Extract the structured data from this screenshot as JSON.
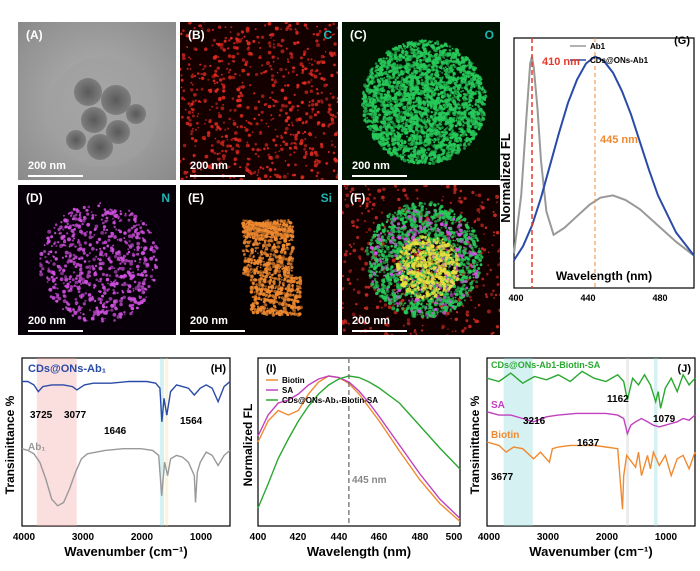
{
  "micro": {
    "A": {
      "label": "(A)",
      "element": "",
      "scale": "200 nm"
    },
    "B": {
      "label": "(B)",
      "element": "C",
      "scale": "200 nm"
    },
    "C": {
      "label": "(C)",
      "element": "O",
      "scale": "200 nm"
    },
    "D": {
      "label": "(D)",
      "element": "N",
      "scale": "200 nm"
    },
    "E": {
      "label": "(E)",
      "element": "Si",
      "scale": "200 nm"
    },
    "F": {
      "label": "(F)",
      "element": "",
      "scale": "200 nm"
    }
  },
  "colors": {
    "red": "#e53a2a",
    "green": "#2ecc6a",
    "magenta": "#d85ae0",
    "orange": "#f08a30",
    "cyan": "#1fb5b0",
    "blue": "#2a4aa8",
    "gray": "#999999"
  },
  "chart_data": [
    {
      "id": "G",
      "label": "(G)",
      "type": "line",
      "xlabel": "Wavelength (nm)",
      "ylabel": "Normalized FL",
      "xlim": [
        400,
        500
      ],
      "xticks": [
        "400",
        "440",
        "480"
      ],
      "series": [
        {
          "name": "Ab1",
          "color": "#999999",
          "x": [
            400,
            404,
            407,
            409,
            410,
            411,
            413,
            415,
            418,
            422,
            428,
            435,
            442,
            448,
            455,
            462,
            470,
            480,
            490,
            500
          ],
          "y": [
            0.15,
            0.4,
            0.75,
            0.97,
            1.0,
            0.95,
            0.78,
            0.55,
            0.33,
            0.23,
            0.26,
            0.31,
            0.36,
            0.39,
            0.4,
            0.38,
            0.34,
            0.27,
            0.2,
            0.14
          ]
        },
        {
          "name": "CDs@ONs-Ab1",
          "color": "#2a4aa8",
          "x": [
            400,
            405,
            410,
            415,
            420,
            425,
            430,
            435,
            440,
            445,
            450,
            455,
            460,
            465,
            470,
            475,
            480,
            490,
            500
          ],
          "y": [
            0.12,
            0.18,
            0.27,
            0.39,
            0.53,
            0.67,
            0.8,
            0.9,
            0.97,
            1.0,
            0.98,
            0.93,
            0.85,
            0.75,
            0.63,
            0.51,
            0.4,
            0.24,
            0.14
          ]
        }
      ],
      "annotations": [
        {
          "text": "410 nm",
          "x": 410,
          "color": "#e53a2a"
        },
        {
          "text": "445 nm",
          "x": 445,
          "color": "#f08a30"
        }
      ]
    },
    {
      "id": "H",
      "label": "(H)",
      "type": "line",
      "xlabel": "Wavenumber (cm⁻¹)",
      "ylabel": "Transimittance %",
      "xlim": [
        4000,
        500
      ],
      "xticks": [
        "4000",
        "3000",
        "2000",
        "1000"
      ],
      "series": [
        {
          "name": "CDs@ONs-Ab₁",
          "color": "#2a4aa8",
          "x": [
            4000,
            3900,
            3800,
            3725,
            3650,
            3500,
            3300,
            3150,
            3077,
            2950,
            2800,
            2500,
            2200,
            1900,
            1750,
            1680,
            1646,
            1610,
            1564,
            1500,
            1400,
            1300,
            1200,
            1100,
            1050,
            1000,
            900,
            800,
            700,
            600,
            500
          ],
          "y": [
            0.86,
            0.86,
            0.84,
            0.8,
            0.83,
            0.84,
            0.84,
            0.83,
            0.81,
            0.84,
            0.85,
            0.85,
            0.86,
            0.86,
            0.85,
            0.82,
            0.62,
            0.76,
            0.66,
            0.8,
            0.84,
            0.83,
            0.82,
            0.78,
            0.8,
            0.82,
            0.84,
            0.82,
            0.74,
            0.83,
            0.86
          ]
        },
        {
          "name": "Ab₁",
          "color": "#999999",
          "x": [
            4000,
            3900,
            3800,
            3700,
            3600,
            3500,
            3400,
            3300,
            3200,
            3100,
            3000,
            2900,
            2600,
            2300,
            2000,
            1800,
            1700,
            1650,
            1600,
            1550,
            1500,
            1400,
            1300,
            1200,
            1100,
            1080,
            1050,
            1000,
            900,
            800,
            700,
            600,
            500
          ],
          "y": [
            0.46,
            0.45,
            0.43,
            0.38,
            0.28,
            0.16,
            0.12,
            0.14,
            0.22,
            0.32,
            0.4,
            0.43,
            0.45,
            0.46,
            0.46,
            0.45,
            0.42,
            0.18,
            0.38,
            0.3,
            0.4,
            0.42,
            0.41,
            0.38,
            0.3,
            0.14,
            0.32,
            0.38,
            0.44,
            0.42,
            0.36,
            0.42,
            0.45
          ]
        }
      ],
      "annotations": [
        {
          "text": "3725",
          "x": 3725
        },
        {
          "text": "3077",
          "x": 3077
        },
        {
          "text": "1646",
          "x": 1646
        },
        {
          "text": "1564",
          "x": 1564
        }
      ]
    },
    {
      "id": "I",
      "label": "(I)",
      "type": "line",
      "xlabel": "Wavelength (nm)",
      "ylabel": "Normalized FL",
      "xlim": [
        400,
        500
      ],
      "xticks": [
        "400",
        "420",
        "440",
        "460",
        "480",
        "500"
      ],
      "series": [
        {
          "name": "Biotin",
          "color": "#f08a30",
          "x": [
            400,
            405,
            410,
            415,
            420,
            425,
            430,
            435,
            440,
            445,
            450,
            455,
            460,
            470,
            480,
            490,
            500
          ],
          "y": [
            0.56,
            0.7,
            0.77,
            0.74,
            0.77,
            0.88,
            0.96,
            1.0,
            0.99,
            0.95,
            0.88,
            0.79,
            0.7,
            0.5,
            0.31,
            0.15,
            0.03
          ]
        },
        {
          "name": "SA",
          "color": "#c040c0",
          "x": [
            400,
            405,
            410,
            415,
            420,
            425,
            430,
            435,
            440,
            445,
            450,
            455,
            460,
            470,
            480,
            490,
            500
          ],
          "y": [
            0.6,
            0.74,
            0.82,
            0.84,
            0.88,
            0.94,
            0.98,
            1.0,
            0.99,
            0.96,
            0.9,
            0.82,
            0.73,
            0.54,
            0.35,
            0.18,
            0.05
          ]
        },
        {
          "name": "CDs@ONs-Ab₁-Biotin-SA",
          "color": "#2aa830",
          "x": [
            400,
            405,
            410,
            415,
            420,
            425,
            430,
            435,
            440,
            445,
            450,
            455,
            460,
            470,
            480,
            490,
            500
          ],
          "y": [
            0.12,
            0.28,
            0.45,
            0.58,
            0.7,
            0.8,
            0.88,
            0.94,
            0.98,
            1.0,
            0.99,
            0.96,
            0.92,
            0.82,
            0.67,
            0.52,
            0.38
          ]
        }
      ],
      "annotations": [
        {
          "text": "445 nm",
          "x": 445
        }
      ]
    },
    {
      "id": "J",
      "label": "(J)",
      "type": "line",
      "xlabel": "Wavenumber (cm⁻¹)",
      "ylabel": "Transimittance %",
      "xlim": [
        4000,
        500
      ],
      "xticks": [
        "4000",
        "3000",
        "2000",
        "1000"
      ],
      "series": [
        {
          "name": "CDs@ONs-Ab1-Biotin-SA",
          "color": "#2aa830",
          "x": [
            4000,
            3800,
            3600,
            3400,
            3200,
            3000,
            2800,
            2600,
            2400,
            2200,
            2000,
            1800,
            1700,
            1637,
            1550,
            1450,
            1350,
            1250,
            1162,
            1120,
            1079,
            1000,
            900,
            800,
            700,
            600,
            500
          ],
          "y": [
            0.88,
            0.86,
            0.91,
            0.85,
            0.89,
            0.87,
            0.9,
            0.86,
            0.92,
            0.88,
            0.86,
            0.9,
            0.86,
            0.75,
            0.88,
            0.84,
            0.9,
            0.84,
            0.74,
            0.8,
            0.7,
            0.82,
            0.88,
            0.8,
            0.9,
            0.84,
            0.88
          ]
        },
        {
          "name": "SA",
          "color": "#c040c0",
          "x": [
            4000,
            3800,
            3600,
            3400,
            3216,
            3000,
            2800,
            2500,
            2200,
            2000,
            1800,
            1700,
            1637,
            1580,
            1500,
            1400,
            1300,
            1200,
            1100,
            1000,
            900,
            800,
            700,
            600,
            500
          ],
          "y": [
            0.68,
            0.66,
            0.66,
            0.64,
            0.62,
            0.65,
            0.66,
            0.67,
            0.67,
            0.67,
            0.66,
            0.64,
            0.55,
            0.6,
            0.62,
            0.64,
            0.62,
            0.6,
            0.59,
            0.6,
            0.61,
            0.62,
            0.64,
            0.63,
            0.66
          ]
        },
        {
          "name": "Biotin",
          "color": "#f08a30",
          "x": [
            4000,
            3800,
            3677,
            3550,
            3400,
            3216,
            3100,
            2950,
            2900,
            2800,
            2600,
            2400,
            2200,
            2000,
            1800,
            1720,
            1700,
            1650,
            1500,
            1450,
            1400,
            1300,
            1250,
            1200,
            1100,
            1000,
            900,
            800,
            700,
            600,
            500
          ],
          "y": [
            0.5,
            0.48,
            0.44,
            0.47,
            0.46,
            0.4,
            0.44,
            0.38,
            0.46,
            0.47,
            0.48,
            0.48,
            0.48,
            0.47,
            0.46,
            0.1,
            0.3,
            0.42,
            0.35,
            0.44,
            0.3,
            0.42,
            0.34,
            0.44,
            0.36,
            0.42,
            0.3,
            0.4,
            0.42,
            0.34,
            0.44
          ]
        }
      ],
      "annotations": [
        {
          "text": "3677",
          "x": 3677
        },
        {
          "text": "3216",
          "x": 3216
        },
        {
          "text": "1637",
          "x": 1637
        },
        {
          "text": "1162",
          "x": 1162
        },
        {
          "text": "1079",
          "x": 1079
        }
      ]
    }
  ]
}
